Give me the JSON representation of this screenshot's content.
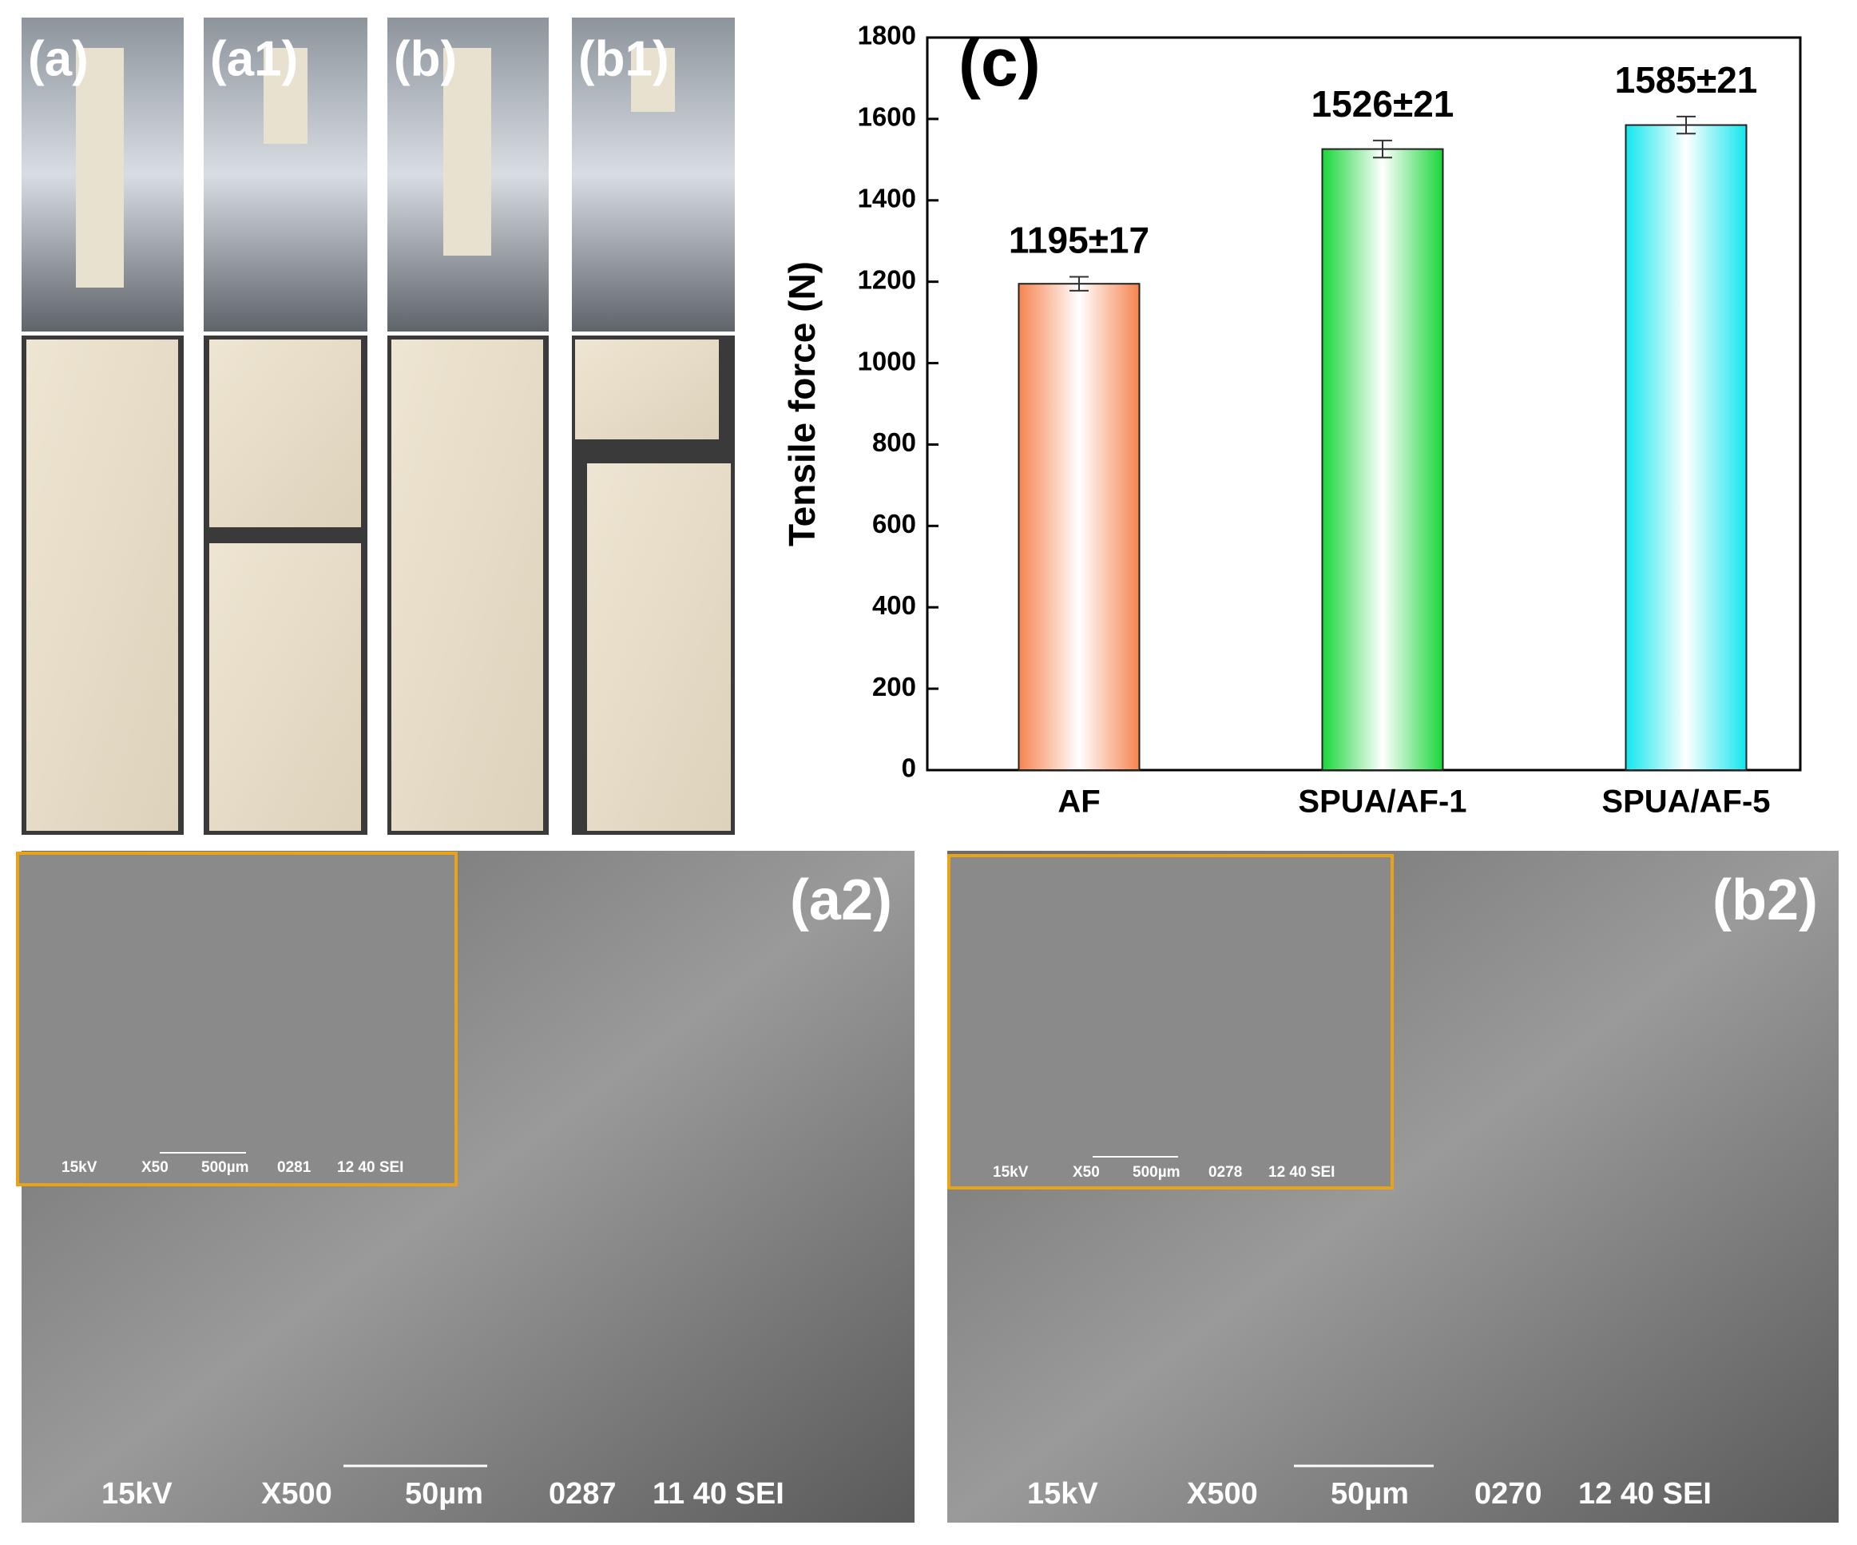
{
  "chart_data": {
    "type": "bar",
    "panel_label": "(c)",
    "ylabel": "Tensile force (N)",
    "categories": [
      "AF",
      "SPUA/AF-1",
      "SPUA/AF-5"
    ],
    "values": [
      1195,
      1526,
      1585
    ],
    "errors": [
      17,
      21,
      21
    ],
    "value_labels": [
      "1195±17",
      "1526±21",
      "1585±21"
    ],
    "colors": [
      "#f5844f",
      "#19d63a",
      "#13e6ee"
    ],
    "ylim": [
      0,
      1800
    ],
    "yticks": [
      0,
      200,
      400,
      600,
      800,
      1000,
      1200,
      1400,
      1600,
      1800
    ]
  },
  "photo_panels": [
    {
      "label": "(a)"
    },
    {
      "label": "(a1)"
    },
    {
      "label": "(b)"
    },
    {
      "label": "(b1)"
    }
  ],
  "sem_panels": [
    {
      "label": "(a2)",
      "inset_caption": [
        "15kV",
        "X50",
        "500µm",
        "0281",
        "12 40 SEI"
      ],
      "caption": [
        "15kV",
        "X500",
        "50µm",
        "0287",
        "11 40 SEI"
      ]
    },
    {
      "label": "(b2)",
      "inset_caption": [
        "15kV",
        "X50",
        "500µm",
        "0278",
        "12 40 SEI"
      ],
      "caption": [
        "15kV",
        "X500",
        "50µm",
        "0270",
        "12 40 SEI"
      ]
    }
  ]
}
